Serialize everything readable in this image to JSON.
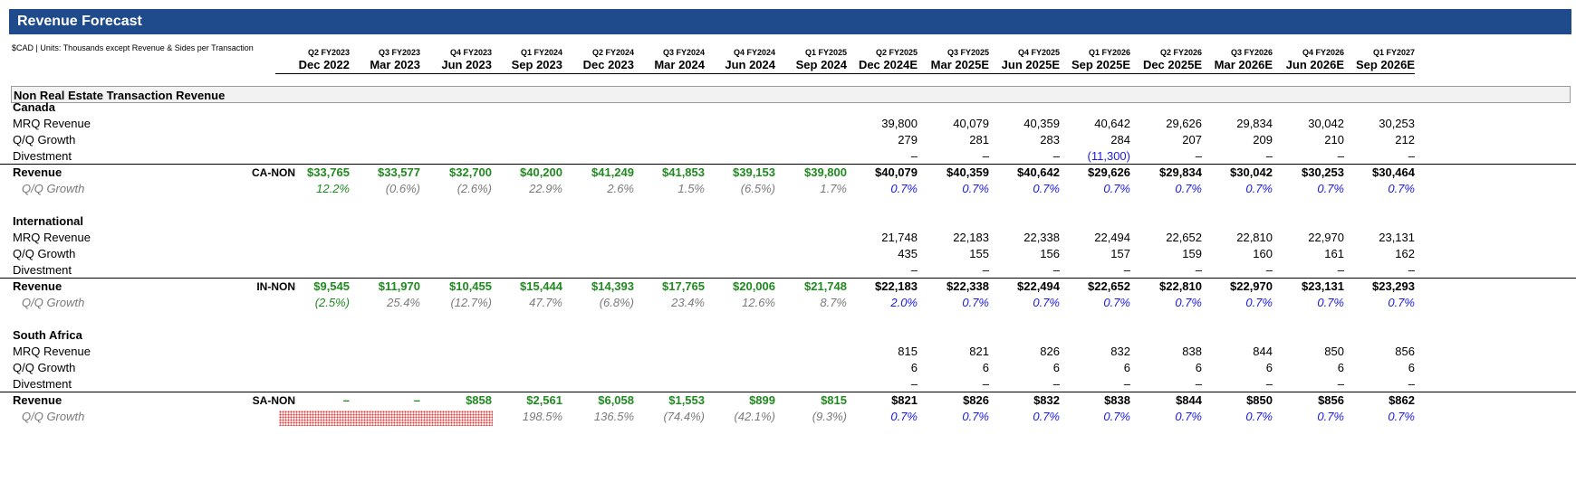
{
  "header": {
    "title": "Revenue Forecast",
    "units_note": "$CAD | Units: Thousands except Revenue & Sides per Transaction",
    "periods": [
      {
        "q": "Q2 FY2023",
        "d": "Dec 2022"
      },
      {
        "q": "Q3 FY2023",
        "d": "Mar 2023"
      },
      {
        "q": "Q4 FY2023",
        "d": "Jun 2023"
      },
      {
        "q": "Q1 FY2024",
        "d": "Sep 2023"
      },
      {
        "q": "Q2 FY2024",
        "d": "Dec 2023"
      },
      {
        "q": "Q3 FY2024",
        "d": "Mar 2024"
      },
      {
        "q": "Q4 FY2024",
        "d": "Jun 2024"
      },
      {
        "q": "Q1 FY2025",
        "d": "Sep 2024"
      },
      {
        "q": "Q2 FY2025",
        "d": "Dec 2024E"
      },
      {
        "q": "Q3 FY2025",
        "d": "Mar 2025E"
      },
      {
        "q": "Q4 FY2025",
        "d": "Jun 2025E"
      },
      {
        "q": "Q1 FY2026",
        "d": "Sep 2025E"
      },
      {
        "q": "Q2 FY2026",
        "d": "Dec 2025E"
      },
      {
        "q": "Q3 FY2026",
        "d": "Mar 2026E"
      },
      {
        "q": "Q4 FY2026",
        "d": "Jun 2026E"
      },
      {
        "q": "Q1 FY2027",
        "d": "Sep 2026E"
      }
    ]
  },
  "section_title": "Non Real Estate Transaction Revenue",
  "groups": [
    {
      "name": "Canada",
      "code": "CA-NON",
      "mrq_label": "MRQ Revenue",
      "growth_label": "Q/Q Growth",
      "divest_label": "Divestment",
      "revenue_label": "Revenue",
      "qq_label": "Q/Q Growth",
      "mrq": [
        "",
        "",
        "",
        "",
        "",
        "",
        "",
        "",
        "39,800",
        "40,079",
        "40,359",
        "40,642",
        "29,626",
        "29,834",
        "30,042",
        "30,253"
      ],
      "growth": [
        "",
        "",
        "",
        "",
        "",
        "",
        "",
        "",
        "279",
        "281",
        "283",
        "284",
        "207",
        "209",
        "210",
        "212"
      ],
      "divest": [
        "",
        "",
        "",
        "",
        "",
        "",
        "",
        "",
        "–",
        "–",
        "–",
        "(11,300)",
        "–",
        "–",
        "–",
        "–"
      ],
      "revenue": [
        "$33,765",
        "$33,577",
        "$32,700",
        "$40,200",
        "$41,249",
        "$41,853",
        "$39,153",
        "$39,800",
        "$40,079",
        "$40,359",
        "$40,642",
        "$29,626",
        "$29,834",
        "$30,042",
        "$30,253",
        "$30,464"
      ],
      "qq": [
        "12.2%",
        "(0.6%)",
        "(2.6%)",
        "22.9%",
        "2.6%",
        "1.5%",
        "(6.5%)",
        "1.7%",
        "0.7%",
        "0.7%",
        "0.7%",
        "0.7%",
        "0.7%",
        "0.7%",
        "0.7%",
        "0.7%"
      ]
    },
    {
      "name": "International",
      "code": "IN-NON",
      "mrq_label": "MRQ Revenue",
      "growth_label": "Q/Q Growth",
      "divest_label": "Divestment",
      "revenue_label": "Revenue",
      "qq_label": "Q/Q Growth",
      "mrq": [
        "",
        "",
        "",
        "",
        "",
        "",
        "",
        "",
        "21,748",
        "22,183",
        "22,338",
        "22,494",
        "22,652",
        "22,810",
        "22,970",
        "23,131"
      ],
      "growth": [
        "",
        "",
        "",
        "",
        "",
        "",
        "",
        "",
        "435",
        "155",
        "156",
        "157",
        "159",
        "160",
        "161",
        "162"
      ],
      "divest": [
        "",
        "",
        "",
        "",
        "",
        "",
        "",
        "",
        "–",
        "–",
        "–",
        "–",
        "–",
        "–",
        "–",
        "–"
      ],
      "revenue": [
        "$9,545",
        "$11,970",
        "$10,455",
        "$15,444",
        "$14,393",
        "$17,765",
        "$20,006",
        "$21,748",
        "$22,183",
        "$22,338",
        "$22,494",
        "$22,652",
        "$22,810",
        "$22,970",
        "$23,131",
        "$23,293"
      ],
      "qq": [
        "(2.5%)",
        "25.4%",
        "(12.7%)",
        "47.7%",
        "(6.8%)",
        "23.4%",
        "12.6%",
        "8.7%",
        "2.0%",
        "0.7%",
        "0.7%",
        "0.7%",
        "0.7%",
        "0.7%",
        "0.7%",
        "0.7%"
      ]
    },
    {
      "name": "South Africa",
      "code": "SA-NON",
      "mrq_label": "MRQ Revenue",
      "growth_label": "Q/Q Growth",
      "divest_label": "Divestment",
      "revenue_label": "Revenue",
      "qq_label": "Q/Q Growth",
      "mrq": [
        "",
        "",
        "",
        "",
        "",
        "",
        "",
        "",
        "815",
        "821",
        "826",
        "832",
        "838",
        "844",
        "850",
        "856"
      ],
      "growth": [
        "",
        "",
        "",
        "",
        "",
        "",
        "",
        "",
        "6",
        "6",
        "6",
        "6",
        "6",
        "6",
        "6",
        "6"
      ],
      "divest": [
        "",
        "",
        "",
        "",
        "",
        "",
        "",
        "",
        "–",
        "–",
        "–",
        "–",
        "–",
        "–",
        "–",
        "–"
      ],
      "revenue": [
        "–",
        "–",
        "$858",
        "$2,561",
        "$6,058",
        "$1,553",
        "$899",
        "$815",
        "$821",
        "$826",
        "$832",
        "$838",
        "$844",
        "$850",
        "$856",
        "$862"
      ],
      "qq": [
        "",
        "",
        "",
        "198.5%",
        "136.5%",
        "(74.4%)",
        "(42.1%)",
        "(9.3%)",
        "0.7%",
        "0.7%",
        "0.7%",
        "0.7%",
        "0.7%",
        "0.7%",
        "0.7%",
        "0.7%"
      ]
    }
  ]
}
